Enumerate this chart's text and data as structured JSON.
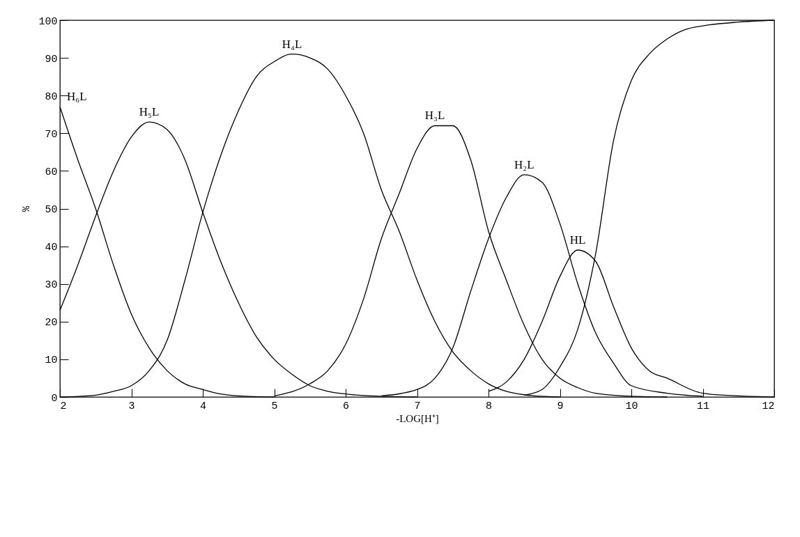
{
  "chart_data": {
    "type": "line",
    "xlabel": "-LOG[H⁺]",
    "ylabel": "%",
    "xlim": [
      2,
      12
    ],
    "ylim": [
      0,
      100
    ],
    "xticks": [
      2,
      3,
      4,
      5,
      6,
      7,
      8,
      9,
      10,
      11,
      12
    ],
    "yticks": [
      0,
      10,
      20,
      30,
      40,
      50,
      60,
      70,
      80,
      90,
      100
    ],
    "grid": false,
    "legend": false,
    "marker": "none",
    "line_style": "solid",
    "series": [
      {
        "name": "H₆L",
        "color": "#000000",
        "x": [
          2,
          2.25,
          2.5,
          2.75,
          3,
          3.25,
          3.5,
          3.75,
          4,
          4.25,
          4.5,
          5
        ],
        "values": [
          77,
          63,
          50,
          35,
          22,
          13,
          7,
          3.5,
          2,
          0.8,
          0.3,
          0
        ]
      },
      {
        "name": "H₅L",
        "color": "#000000",
        "x": [
          2,
          2.25,
          2.5,
          2.75,
          3,
          3.25,
          3.5,
          3.75,
          4,
          4.25,
          4.5,
          4.75,
          5,
          5.25,
          5.5,
          5.75,
          6,
          6.5,
          7
        ],
        "values": [
          23,
          35,
          48,
          60,
          69,
          73,
          71,
          63,
          49,
          36,
          25,
          16,
          10,
          6,
          3,
          1.5,
          0.8,
          0.2,
          0
        ]
      },
      {
        "name": "H₄L",
        "color": "#000000",
        "x": [
          2,
          2.5,
          2.75,
          3,
          3.25,
          3.5,
          3.75,
          4,
          4.25,
          4.5,
          4.75,
          5,
          5.25,
          5.5,
          5.75,
          6,
          6.25,
          6.5,
          6.75,
          7,
          7.25,
          7.5,
          7.75,
          8,
          8.25,
          8.5,
          9
        ],
        "values": [
          0,
          0.5,
          1.5,
          3,
          7,
          15,
          31,
          49,
          64,
          76,
          85,
          89,
          91,
          90,
          87,
          80,
          70,
          55,
          44,
          31,
          20,
          12,
          7,
          3.5,
          1.5,
          0.6,
          0
        ]
      },
      {
        "name": "H₃L",
        "color": "#000000",
        "x": [
          5,
          5.5,
          5.75,
          6,
          6.25,
          6.5,
          6.75,
          7,
          7.25,
          7.5,
          7.75,
          8,
          8.25,
          8.5,
          8.75,
          9,
          9.25,
          9.5,
          10,
          10.5
        ],
        "values": [
          0.3,
          3.5,
          7,
          14,
          26,
          42,
          54,
          66,
          72,
          72,
          63,
          44,
          31,
          19,
          10,
          5,
          2.5,
          1,
          0.2,
          0
        ]
      },
      {
        "name": "H₂L",
        "color": "#000000",
        "x": [
          6.5,
          7,
          7.25,
          7.5,
          7.75,
          8,
          8.25,
          8.5,
          8.75,
          9,
          9.25,
          9.5,
          9.75,
          10,
          10.5,
          11
        ],
        "values": [
          0.3,
          2,
          5,
          13,
          28,
          42,
          53,
          59,
          57,
          46,
          30,
          17,
          9,
          3,
          1,
          0.2
        ]
      },
      {
        "name": "HL",
        "color": "#000000",
        "x": [
          8,
          8.25,
          8.5,
          8.75,
          9,
          9.25,
          9.5,
          9.75,
          10,
          10.25,
          10.5,
          11,
          11.5,
          12
        ],
        "values": [
          1.5,
          4,
          10,
          20,
          32,
          39,
          36,
          24,
          13,
          7,
          5,
          1,
          0.3,
          0
        ]
      },
      {
        "color": "#000000",
        "x": [
          8.5,
          8.75,
          9,
          9.25,
          9.5,
          9.75,
          10,
          10.25,
          10.5,
          10.75,
          11,
          11.5,
          12
        ],
        "values": [
          0.5,
          2,
          8,
          18,
          38,
          68,
          84,
          91,
          95,
          97.5,
          98.5,
          99.5,
          100
        ]
      }
    ]
  }
}
